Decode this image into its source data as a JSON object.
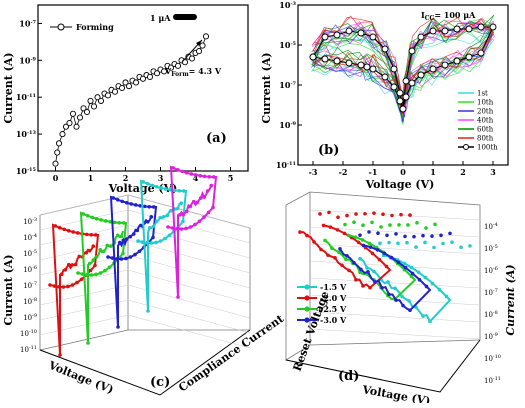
{
  "panels": [
    {
      "id": "a",
      "label": "(a)"
    },
    {
      "id": "b",
      "label": "(b)"
    },
    {
      "id": "c",
      "label": "(c)"
    },
    {
      "id": "d",
      "label": "(d)"
    }
  ],
  "chart_data": [
    {
      "panel": "(a)",
      "type": "scatter",
      "xlabel": "Voltage (V)",
      "ylabel": "Current (A)",
      "xlim": [
        -0.5,
        5.5
      ],
      "ylim_exp": [
        -15,
        -6
      ],
      "log_y": true,
      "x_ticks": [
        "0",
        "1",
        "2",
        "3",
        "4",
        "5"
      ],
      "y_ticks": [
        "10^-15",
        "10^-13",
        "10^-11",
        "10^-9",
        "10^-7"
      ],
      "series": [
        {
          "name": "Forming",
          "x": [
            0.0,
            0.05,
            0.1,
            0.2,
            0.3,
            0.4,
            0.5,
            0.6,
            0.7,
            0.8,
            0.9,
            1.0,
            1.1,
            1.2,
            1.3,
            1.4,
            1.5,
            1.6,
            1.7,
            1.8,
            1.9,
            2.0,
            2.1,
            2.2,
            2.3,
            2.4,
            2.5,
            2.6,
            2.7,
            2.8,
            2.9,
            3.0,
            3.1,
            3.2,
            3.3,
            3.4,
            3.5,
            3.6,
            3.7,
            3.8,
            3.9,
            4.0,
            4.1,
            4.2,
            4.3
          ],
          "y_exp": [
            -14.6,
            -14.0,
            -13.5,
            -13.0,
            -12.6,
            -12.4,
            -11.9,
            -12.6,
            -12.1,
            -11.6,
            -11.8,
            -11.2,
            -11.5,
            -11.0,
            -11.2,
            -10.8,
            -10.9,
            -10.6,
            -10.7,
            -10.4,
            -10.5,
            -10.2,
            -10.4,
            -10.1,
            -10.2,
            -9.9,
            -10.0,
            -9.8,
            -9.9,
            -9.6,
            -9.7,
            -9.5,
            -9.6,
            -9.3,
            -9.4,
            -9.2,
            -9.3,
            -9.0,
            -9.1,
            -8.8,
            -8.9,
            -8.6,
            -8.5,
            -8.2,
            -7.7
          ]
        }
      ],
      "annotations": {
        "compliance": "1 μA",
        "forming_label": "V",
        "forming_sub": "Form",
        "forming_value": "= 4.3 V"
      }
    },
    {
      "panel": "(b)",
      "type": "line",
      "xlabel": "Voltage (V)",
      "ylabel": "Current (A)",
      "xlim": [
        -3.5,
        3.5
      ],
      "ylim_exp": [
        -11,
        -3
      ],
      "log_y": true,
      "x_ticks": [
        "-3",
        "-2",
        "-1",
        "0",
        "1",
        "2",
        "3"
      ],
      "y_ticks": [
        "10^-11",
        "10^-9",
        "10^-7",
        "10^-5",
        "10^-3"
      ],
      "compliance_prefix": "I",
      "compliance_sub": "CC",
      "compliance_value": "= 100 μA",
      "series": [
        {
          "name": "1st",
          "color": "#33dddd"
        },
        {
          "name": "10th",
          "color": "#33dd33"
        },
        {
          "name": "20th",
          "color": "#3333dd"
        },
        {
          "name": "40th",
          "color": "#ff44ff"
        },
        {
          "name": "60th",
          "color": "#008800"
        },
        {
          "name": "80th",
          "color": "#dd2222"
        },
        {
          "name": "100th",
          "color": "#000000"
        }
      ],
      "curve_100th": {
        "x": [
          -3.0,
          -2.6,
          -2.2,
          -1.8,
          -1.4,
          -1.2,
          -1.0,
          -0.6,
          -0.3,
          -0.1,
          0.0,
          0.1,
          0.3,
          0.6,
          1.0,
          1.4,
          1.8,
          2.2,
          2.6,
          3.0,
          2.6,
          2.2,
          1.8,
          1.4,
          1.0,
          0.6,
          0.3,
          0.1,
          0.0,
          -0.1,
          -0.3,
          -0.6,
          -1.0,
          -1.4,
          -1.8,
          -2.2,
          -2.6,
          -3.0
        ],
        "y_exp": [
          -5.6,
          -5.7,
          -5.8,
          -5.9,
          -6.0,
          -6.1,
          -6.2,
          -6.6,
          -7.1,
          -7.8,
          -8.2,
          -7.6,
          -6.9,
          -6.5,
          -6.2,
          -6.0,
          -5.8,
          -5.6,
          -5.4,
          -4.1,
          -4.1,
          -4.2,
          -4.2,
          -4.3,
          -4.3,
          -4.6,
          -5.3,
          -6.8,
          -8.2,
          -7.4,
          -6.2,
          -5.2,
          -4.6,
          -4.4,
          -4.3,
          -4.5,
          -4.6,
          -5.6
        ]
      }
    },
    {
      "panel": "(c)",
      "type": "line",
      "xlabel": "Voltage (V)",
      "ylabel": "Current (A)",
      "zlabel": "Compliance Current",
      "log_y": true,
      "y_ticks": [
        "10^-11",
        "10^-10",
        "10^-9",
        "10^-8",
        "10^-7",
        "10^-6",
        "10^-5",
        "10^-4",
        "10^-3"
      ],
      "series": [
        {
          "name": "",
          "color": "#dd1111"
        },
        {
          "name": "",
          "color": "#22cc22"
        },
        {
          "name": "",
          "color": "#2222cc"
        },
        {
          "name": "",
          "color": "#22cccc"
        },
        {
          "name": "",
          "color": "#dd22dd"
        }
      ]
    },
    {
      "panel": "(d)",
      "type": "line",
      "xlabel": "Voltage (V)",
      "ylabel": "Current (A)",
      "zlabel": "Reset Voltage",
      "log_y": true,
      "y_ticks": [
        "10^-11",
        "10^-10",
        "10^-9",
        "10^-8",
        "10^-7",
        "10^-6",
        "10^-5",
        "10^-4"
      ],
      "series": [
        {
          "name": "-1.5 V",
          "color": "#22cccc"
        },
        {
          "name": "-2.0 V",
          "color": "#dd1111"
        },
        {
          "name": "-2.5 V",
          "color": "#22cc22"
        },
        {
          "name": "-3.0 V",
          "color": "#2222cc"
        }
      ]
    }
  ]
}
